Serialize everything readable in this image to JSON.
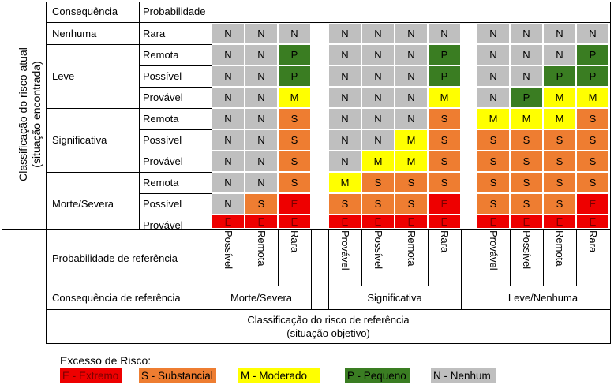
{
  "header": {
    "consequence_col": "Consequência",
    "probability_col": "Probabilidade"
  },
  "vertical_title": {
    "line1": "Classificação do risco atual",
    "line2": "(situação encontrada)"
  },
  "consequences": [
    "Nenhuma",
    "Leve",
    "Significativa",
    "Morte/Severa"
  ],
  "probabilities": [
    "Rara",
    "Remota",
    "Possível",
    "Provável",
    "Remota",
    "Possível",
    "Provável",
    "Remota",
    "Possível",
    "Provável"
  ],
  "matrix": [
    [
      "N",
      "N",
      "N",
      "N",
      "N",
      "N",
      "N",
      "N",
      "N",
      "N",
      "N"
    ],
    [
      "N",
      "N",
      "P",
      "N",
      "N",
      "N",
      "P",
      "N",
      "N",
      "N",
      "P"
    ],
    [
      "N",
      "N",
      "P",
      "N",
      "N",
      "N",
      "P",
      "N",
      "N",
      "P",
      "P"
    ],
    [
      "N",
      "N",
      "M",
      "N",
      "N",
      "N",
      "M",
      "N",
      "P",
      "M",
      "M"
    ],
    [
      "N",
      "N",
      "S",
      "N",
      "N",
      "N",
      "S",
      "M",
      "M",
      "M",
      "S"
    ],
    [
      "N",
      "N",
      "S",
      "N",
      "N",
      "M",
      "S",
      "S",
      "S",
      "S",
      "S"
    ],
    [
      "N",
      "N",
      "S",
      "N",
      "M",
      "M",
      "S",
      "S",
      "S",
      "S",
      "S"
    ],
    [
      "N",
      "N",
      "S",
      "M",
      "S",
      "S",
      "S",
      "S",
      "S",
      "S",
      "S"
    ],
    [
      "N",
      "S",
      "E",
      "S",
      "S",
      "S",
      "E",
      "S",
      "S",
      "S",
      "E"
    ],
    [
      "E",
      "E",
      "E",
      "E",
      "E",
      "E",
      "E",
      "E",
      "E",
      "E",
      "E"
    ]
  ],
  "reference": {
    "probability_label": "Probabilidade de referência",
    "consequence_label": "Consequência de referência",
    "probabilities": [
      "Possível",
      "Remota",
      "Rara",
      "Provável",
      "Possível",
      "Remota",
      "Rara",
      "Provável",
      "Possível",
      "Remota",
      "Rara"
    ],
    "consequence_groups": [
      "Morte/Severa",
      "Significativa",
      "Leve/Nenhuma"
    ]
  },
  "footer": {
    "line1": "Classificação do risco de referência",
    "line2": "(situação objetivo)"
  },
  "legend": {
    "title": "Excesso de Risco:",
    "items": [
      {
        "code": "E",
        "label": "E - Extremo",
        "color": "#ee0000"
      },
      {
        "code": "S",
        "label": "S - Substancial",
        "color": "#ee7d31"
      },
      {
        "code": "M",
        "label": "M - Moderado",
        "color": "#ffff00"
      },
      {
        "code": "P",
        "label": "P - Pequeno",
        "color": "#3a7d22"
      },
      {
        "code": "N",
        "label": "N - Nenhum",
        "color": "#bfbfbf"
      }
    ]
  },
  "colors": {
    "E": "#ee0000",
    "S": "#ee7d31",
    "M": "#ffff00",
    "P": "#3a7d22",
    "N": "#bfbfbf"
  }
}
